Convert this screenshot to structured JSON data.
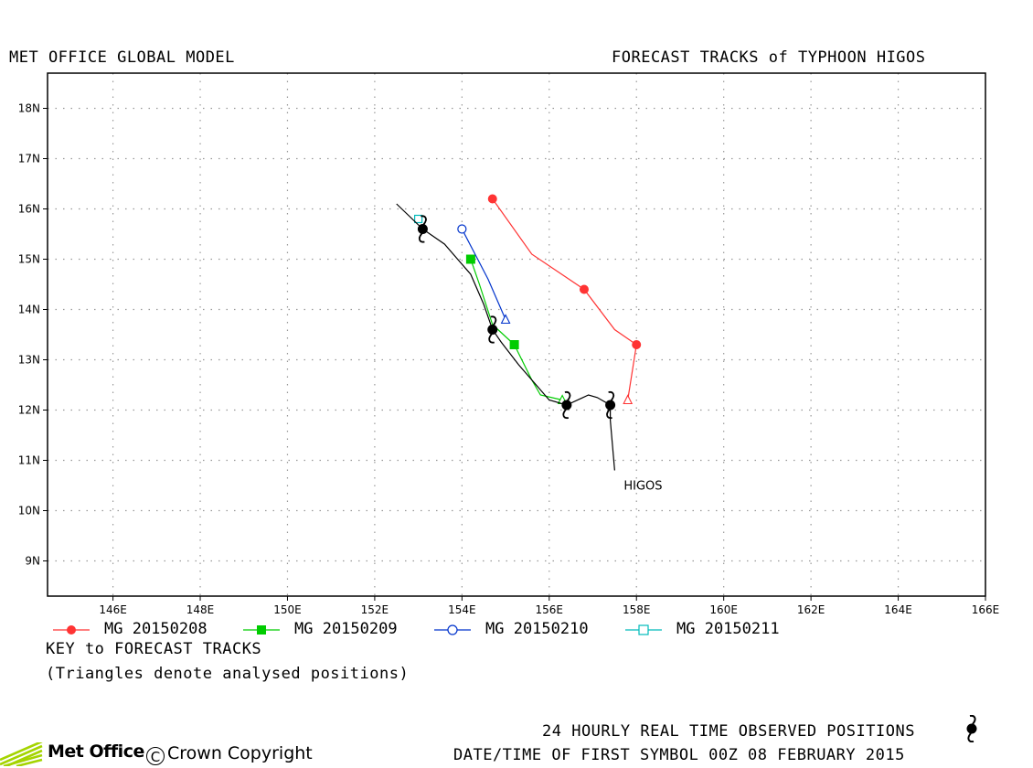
{
  "header": {
    "left_title": "MET OFFICE GLOBAL MODEL",
    "right_title": "FORECAST TRACKS of TYPHOON HIGOS"
  },
  "chart_data": {
    "type": "line",
    "xlim": [
      144.5,
      166
    ],
    "ylim": [
      8.3,
      18.7
    ],
    "x_ticks": [
      146,
      148,
      150,
      152,
      154,
      156,
      158,
      160,
      162,
      164,
      166
    ],
    "x_tick_labels": [
      "146E",
      "148E",
      "150E",
      "152E",
      "154E",
      "156E",
      "158E",
      "160E",
      "162E",
      "164E",
      "166E"
    ],
    "y_ticks": [
      9,
      10,
      11,
      12,
      13,
      14,
      15,
      16,
      17,
      18
    ],
    "y_tick_labels": [
      "9N",
      "10N",
      "11N",
      "12N",
      "13N",
      "14N",
      "15N",
      "16N",
      "17N",
      "18N"
    ],
    "grid": true,
    "observed": {
      "label": "HIGOS",
      "track": [
        [
          157.5,
          10.8
        ],
        [
          157.45,
          11.3
        ],
        [
          157.4,
          11.8
        ],
        [
          157.4,
          12.1
        ],
        [
          157.1,
          12.25
        ],
        [
          156.9,
          12.3
        ],
        [
          156.4,
          12.1
        ],
        [
          156.0,
          12.2
        ],
        [
          155.7,
          12.5
        ],
        [
          155.3,
          12.9
        ],
        [
          154.9,
          13.35
        ],
        [
          154.7,
          13.6
        ],
        [
          154.5,
          14.1
        ],
        [
          154.2,
          14.7
        ],
        [
          153.9,
          15.0
        ],
        [
          153.6,
          15.3
        ],
        [
          153.1,
          15.6
        ],
        [
          152.8,
          15.85
        ],
        [
          152.5,
          16.1
        ]
      ],
      "symbols": [
        [
          157.4,
          12.1
        ],
        [
          156.4,
          12.1
        ],
        [
          154.7,
          13.6
        ],
        [
          153.1,
          15.6
        ]
      ]
    },
    "series": [
      {
        "name": "MG 20150208",
        "color": "#ff3333",
        "marker": "circle-filled",
        "analysed": [
          157.8,
          12.2
        ],
        "points": [
          [
            157.8,
            12.2
          ],
          [
            158.0,
            13.3
          ],
          [
            157.5,
            13.6
          ],
          [
            156.8,
            14.4
          ],
          [
            155.6,
            15.1
          ],
          [
            154.7,
            16.2
          ]
        ],
        "markers": [
          [
            158.0,
            13.3
          ],
          [
            156.8,
            14.4
          ],
          [
            154.7,
            16.2
          ]
        ]
      },
      {
        "name": "MG 20150209",
        "color": "#00cc00",
        "marker": "square-filled",
        "analysed": [
          156.3,
          12.2
        ],
        "points": [
          [
            156.3,
            12.2
          ],
          [
            155.8,
            12.3
          ],
          [
            155.6,
            12.6
          ],
          [
            155.2,
            13.3
          ],
          [
            154.7,
            13.7
          ],
          [
            154.4,
            14.5
          ],
          [
            154.2,
            15.0
          ]
        ],
        "markers": [
          [
            155.2,
            13.3
          ],
          [
            154.2,
            15.0
          ]
        ]
      },
      {
        "name": "MG 20150210",
        "color": "#0033cc",
        "marker": "circle-open",
        "analysed": [
          155.0,
          13.8
        ],
        "points": [
          [
            155.0,
            13.8
          ],
          [
            154.6,
            14.6
          ],
          [
            154.0,
            15.6
          ]
        ],
        "markers": [
          [
            154.0,
            15.6
          ]
        ]
      },
      {
        "name": "MG 20150211",
        "color": "#00bbbb",
        "marker": "square-open",
        "analysed": [
          153.0,
          15.8
        ],
        "points": [
          [
            153.0,
            15.8
          ]
        ],
        "markers": []
      }
    ]
  },
  "footer": {
    "key_title": "KEY to FORECAST TRACKS",
    "key_note": "(Triangles denote analysed positions)",
    "observed_note": "24 HOURLY REAL TIME OBSERVED POSITIONS",
    "date_note": "DATE/TIME OF FIRST SYMBOL 00Z 08 FEBRUARY 2015",
    "logo_text": "Met Office",
    "copyright": "Crown Copyright"
  }
}
